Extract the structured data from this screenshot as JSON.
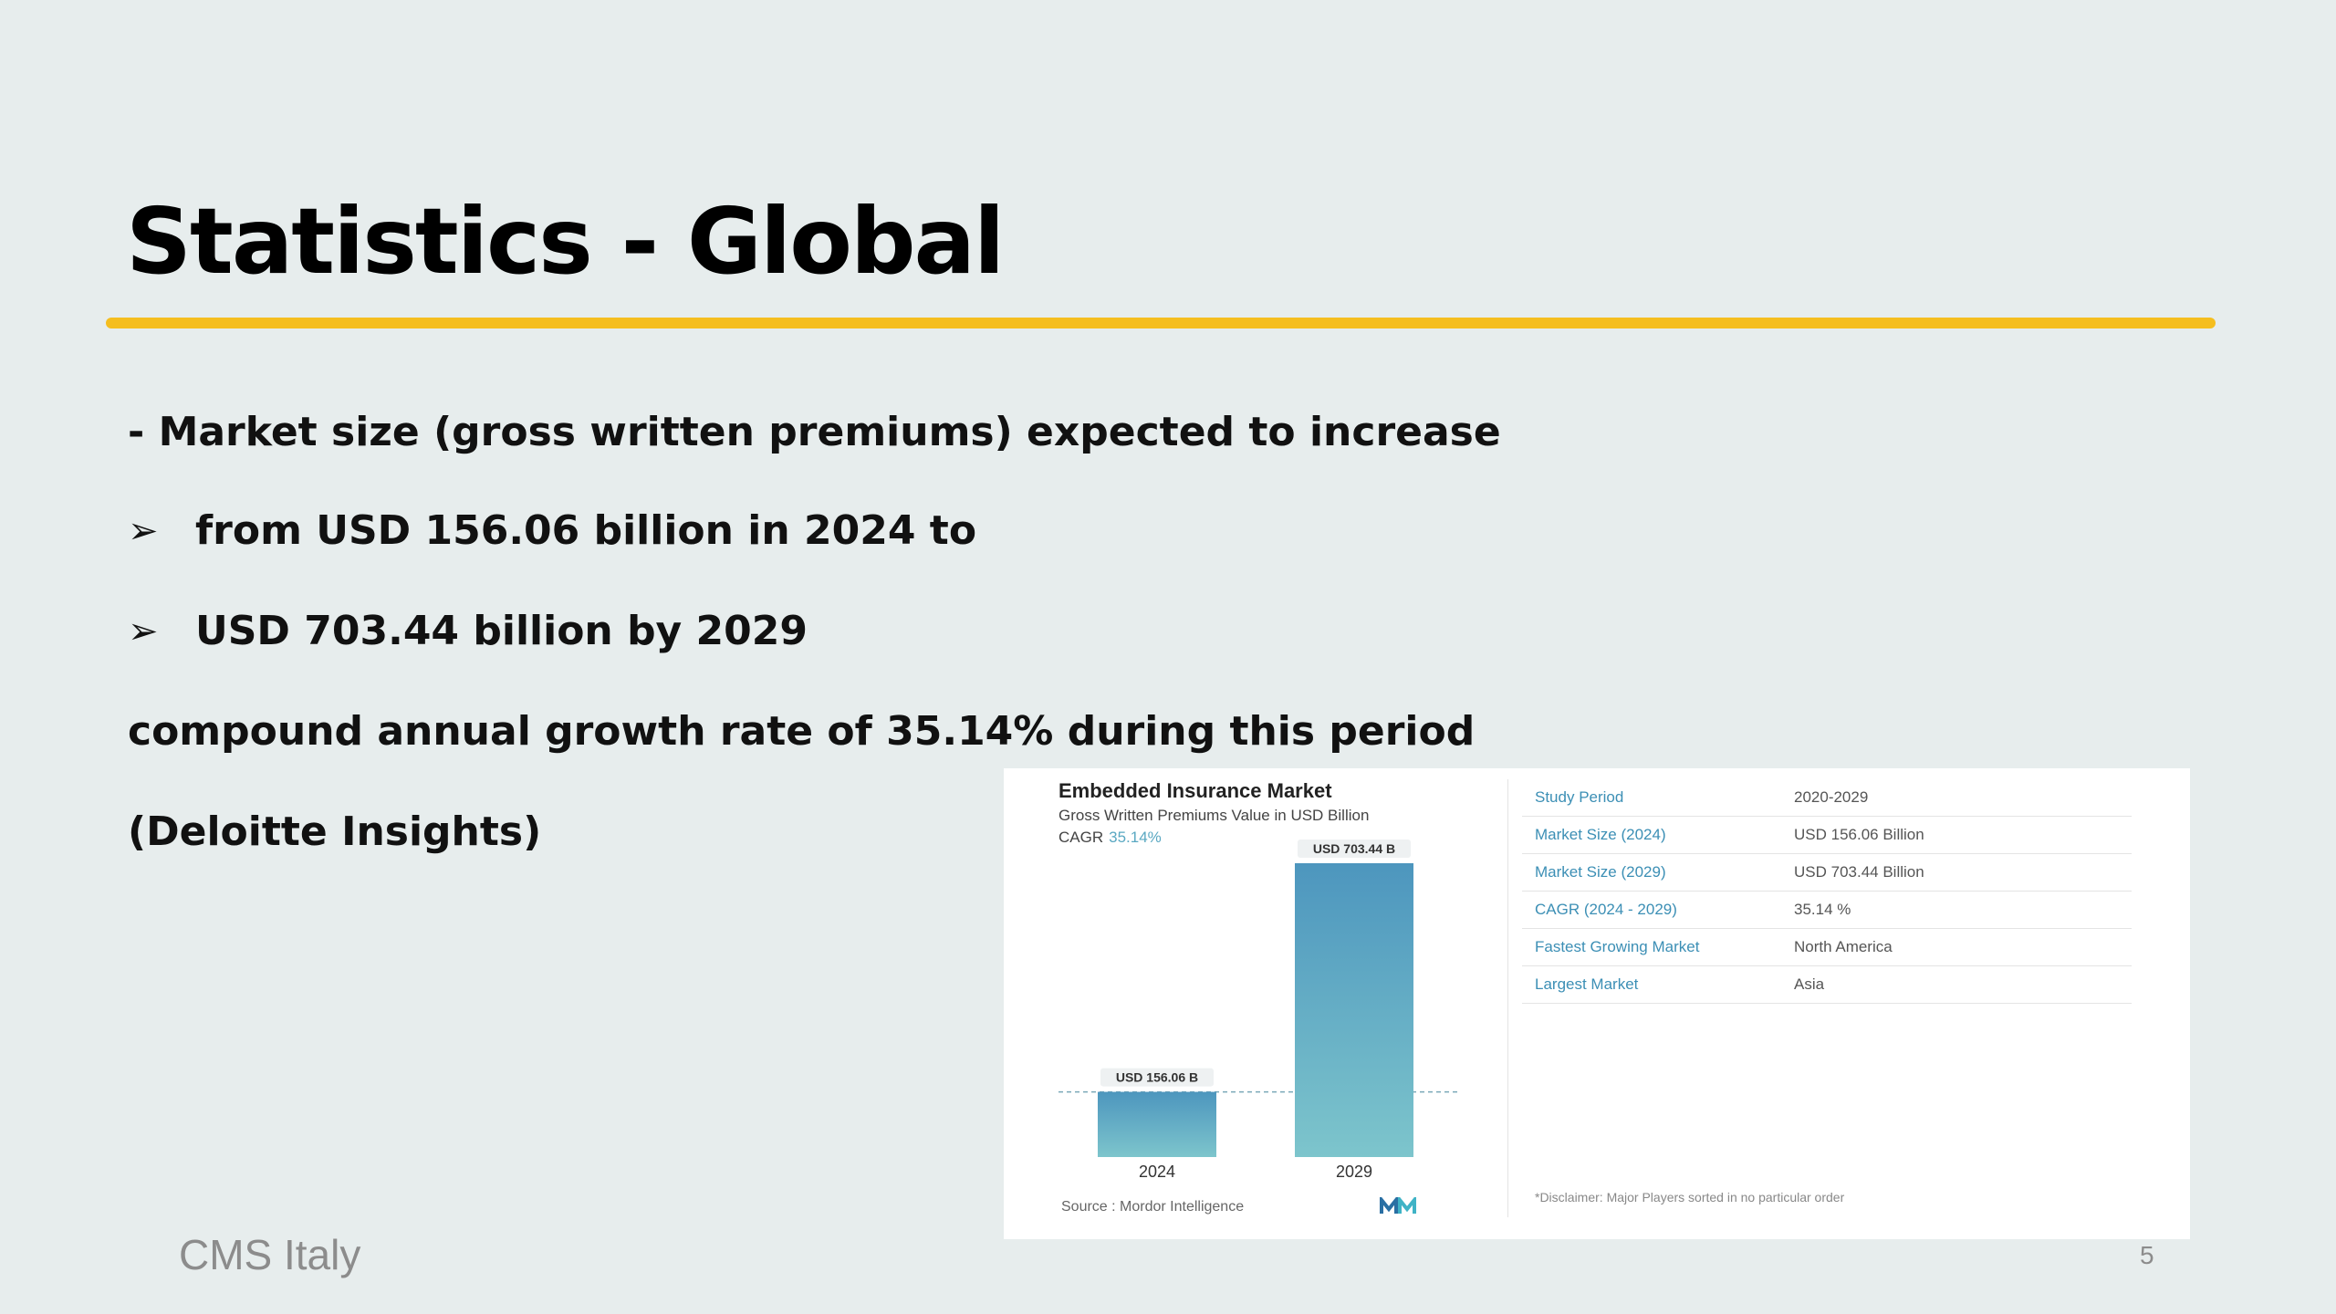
{
  "slide": {
    "title": "Statistics - Global",
    "lines": {
      "l1": "- Market size (gross written premiums) expected to increase",
      "l2": "from USD 156.06 billion in 2024 to",
      "l3": "USD 703.44 billion by 2029",
      "l4": "compound annual growth rate of 35.14% during this period",
      "l5": "(Deloitte Insights)"
    },
    "bullet_glyph": "➢",
    "footer": "CMS Italy",
    "page_number": "5",
    "accent_color": "#f5be1f"
  },
  "image": {
    "chart_data": {
      "type": "bar",
      "title": "Embedded Insurance Market",
      "subtitle": "Gross Written Premiums Value in USD Billion",
      "cagr_label": "CAGR",
      "cagr_value": "35.14%",
      "categories": [
        "2024",
        "2029"
      ],
      "values": [
        156.06,
        703.44
      ],
      "data_labels": [
        "USD 156.06 B",
        "USD 703.44 B"
      ],
      "xlabel": "",
      "ylabel": "",
      "ylim": [
        0,
        703.44
      ],
      "source": "Source :  Mordor Intelligence",
      "colors": {
        "bar_top": "#4d96be",
        "bar_bottom": "#7dc5cc"
      }
    },
    "table": {
      "rows": [
        {
          "label": "Study Period",
          "value": "2020-2029"
        },
        {
          "label": "Market Size (2024)",
          "value": "USD 156.06 Billion"
        },
        {
          "label": "Market Size (2029)",
          "value": "USD 703.44 Billion"
        },
        {
          "label": "CAGR (2024 - 2029)",
          "value": "35.14 %"
        },
        {
          "label": "Fastest Growing Market",
          "value": "North America"
        },
        {
          "label": "Largest Market",
          "value": "Asia"
        }
      ],
      "disclaimer": "*Disclaimer: Major Players sorted in no particular order"
    }
  }
}
